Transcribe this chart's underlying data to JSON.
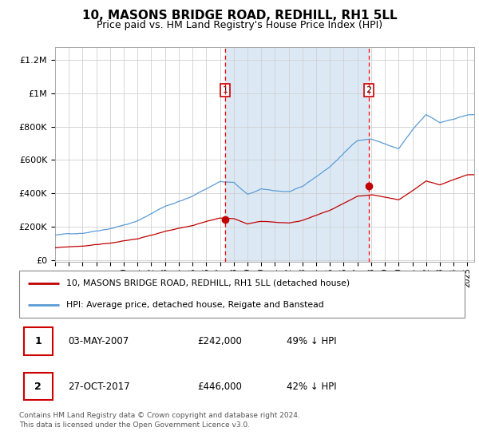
{
  "title": "10, MASONS BRIDGE ROAD, REDHILL, RH1 5LL",
  "subtitle": "Price paid vs. HM Land Registry's House Price Index (HPI)",
  "footer": "Contains HM Land Registry data © Crown copyright and database right 2024.\nThis data is licensed under the Open Government Licence v3.0.",
  "legend_line1": "10, MASONS BRIDGE ROAD, REDHILL, RH1 5LL (detached house)",
  "legend_line2": "HPI: Average price, detached house, Reigate and Banstead",
  "transaction1_date": "03-MAY-2007",
  "transaction1_price": "£242,000",
  "transaction1_hpi": "49% ↓ HPI",
  "transaction2_date": "27-OCT-2017",
  "transaction2_price": "£446,000",
  "transaction2_hpi": "42% ↓ HPI",
  "hpi_color": "#5b9bd5",
  "price_color": "#c00000",
  "shade_color": "#dce9f5",
  "marker1_year": 2007.37,
  "marker2_year": 2017.83,
  "marker1_price": 242000,
  "marker2_price": 446000,
  "ylim_min": -10000,
  "ylim_max": 1280000,
  "yticks": [
    0,
    200000,
    400000,
    600000,
    800000,
    1000000,
    1200000
  ],
  "ytick_labels": [
    "£0",
    "£200K",
    "£400K",
    "£600K",
    "£800K",
    "£1M",
    "£1.2M"
  ],
  "xmin": 1995.0,
  "xmax": 2025.5
}
